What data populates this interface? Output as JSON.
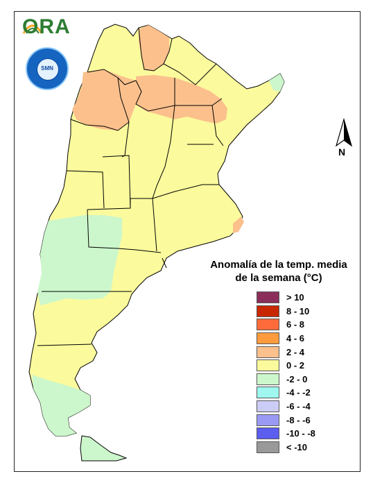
{
  "logo": {
    "name": "ORA",
    "color": "#2e7d32",
    "sun_color": "#f9a825"
  },
  "seal": {
    "label": "SMN",
    "ring_color": "#1565c0"
  },
  "north_arrow": {
    "label": "N"
  },
  "legend": {
    "title_line1": "Anomalía de la temp. media",
    "title_line2": "de la semana (°C)",
    "items": [
      {
        "label": "> 10",
        "color": "#8b2e5a"
      },
      {
        "label": "8 - 10",
        "color": "#c82800"
      },
      {
        "label": "6 - 8",
        "color": "#ff6a3a"
      },
      {
        "label": "4 - 6",
        "color": "#ff9b3d"
      },
      {
        "label": "2 - 4",
        "color": "#fbc08c"
      },
      {
        "label": "0 - 2",
        "color": "#fbfa9d"
      },
      {
        "label": "-2 - 0",
        "color": "#ccf7cc"
      },
      {
        "label": "-4 - -2",
        "color": "#9ff7ef"
      },
      {
        "label": "-6 - -4",
        "color": "#cccdf7"
      },
      {
        "label": "-8 - -6",
        "color": "#9a9af4"
      },
      {
        "label": "-10 - -8",
        "color": "#5c5ef0"
      },
      {
        "label": "< -10",
        "color": "#999999"
      }
    ]
  },
  "map": {
    "base_class": "0 - 2",
    "warm_zones_class": "2 - 4",
    "cool_zones_class": "-2 - 0"
  }
}
